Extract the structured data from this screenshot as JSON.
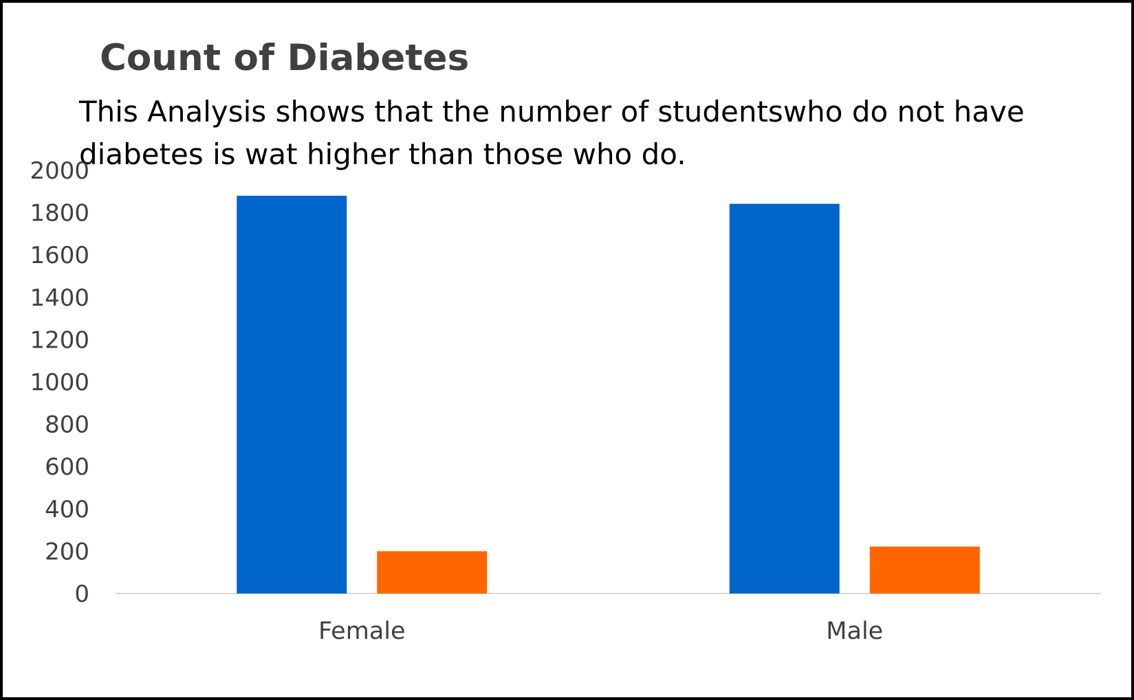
{
  "chart_data": {
    "type": "bar",
    "title": "Count of Diabetes",
    "subtitle": "This Analysis shows that the number of studentswho do not have diabetes is wat higher than those who do.",
    "xlabel": "",
    "ylabel": "",
    "categories": [
      "Female",
      "Male"
    ],
    "series": [
      {
        "values": [
          1880,
          1842
        ],
        "color": "#0066CC"
      },
      {
        "values": [
          200,
          222
        ],
        "color": "#FF6600"
      }
    ],
    "ylim": [
      0,
      2000
    ],
    "yticks": [
      "0",
      "200",
      "400",
      "600",
      "800",
      "1000",
      "1200",
      "1400",
      "1600",
      "1800",
      "2000"
    ],
    "grid": false,
    "legend": "none"
  }
}
